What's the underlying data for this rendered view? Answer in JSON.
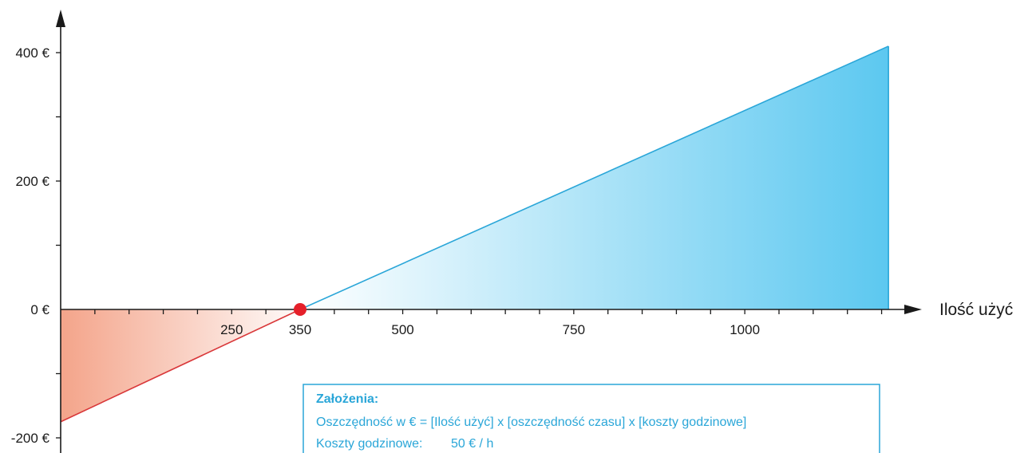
{
  "chart_data": {
    "type": "area",
    "x_axis_title": "Ilość użyć",
    "x_ticks": [
      {
        "value": 250,
        "label": "250"
      },
      {
        "value": 350,
        "label": "350",
        "highlight": true
      },
      {
        "value": 500,
        "label": "500"
      },
      {
        "value": 750,
        "label": "750"
      },
      {
        "value": 1000,
        "label": "1000"
      }
    ],
    "y_ticks": [
      {
        "value": 400,
        "label": "400 €"
      },
      {
        "value": 200,
        "label": "200 €"
      },
      {
        "value": 0,
        "label": "0 €"
      },
      {
        "value": -200,
        "label": "-200 €"
      }
    ],
    "xlim": [
      0,
      1250
    ],
    "ylim": [
      -215,
      430
    ],
    "series": [
      {
        "points": [
          [
            0,
            -175
          ],
          [
            350,
            0
          ],
          [
            1210,
            410
          ]
        ]
      }
    ],
    "break_even": {
      "x": 350,
      "y": 0
    },
    "colors": {
      "negative": "#f4a48a",
      "positive": "#5cc8f0",
      "negative_line": "#d9383a",
      "positive_line": "#2aa6d8",
      "marker": "#e5202a",
      "axis": "#1a1a1a"
    }
  },
  "assumptions": {
    "title": "Założenia:",
    "lines": [
      "Oszczędność w € = [Ilość użyć] x [oszczędność czasu] x [koszty godzinowe]",
      "Koszty godzinowe:        50 € / h"
    ]
  }
}
